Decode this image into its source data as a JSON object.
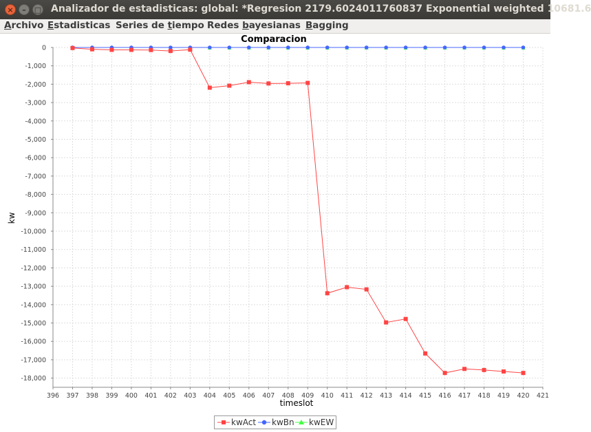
{
  "window": {
    "title": "Analizador de estadisticas: global: *Regresion 2179.6024011760837 Exponential weighted  10681.6",
    "close_glyph": "×",
    "minimize_glyph": "–",
    "maximize_glyph": "□"
  },
  "menu": [
    {
      "label": "Archivo",
      "mnemonic": "A"
    },
    {
      "label": "Estadisticas",
      "mnemonic": "E"
    },
    {
      "label": "Series de tiempo",
      "mnemonic": "t"
    },
    {
      "label": "Redes bayesianas",
      "mnemonic": "b"
    },
    {
      "label": "Bagging",
      "mnemonic": "B"
    }
  ],
  "chart_data": {
    "type": "line",
    "title": "Comparacion",
    "xlabel": "timeslot",
    "ylabel": "kw",
    "xlim": [
      396,
      421
    ],
    "ylim": [
      -18500,
      0
    ],
    "xticks": [
      396,
      397,
      398,
      399,
      400,
      401,
      402,
      403,
      404,
      405,
      406,
      407,
      408,
      409,
      410,
      411,
      412,
      413,
      414,
      415,
      416,
      417,
      418,
      419,
      420,
      421
    ],
    "yticks": [
      0,
      -1000,
      -2000,
      -3000,
      -4000,
      -5000,
      -6000,
      -7000,
      -8000,
      -9000,
      -10000,
      -11000,
      -12000,
      -13000,
      -14000,
      -15000,
      -16000,
      -17000,
      -18000
    ],
    "ytick_labels": [
      "0",
      "-1,000",
      "-2,000",
      "-3,000",
      "-4,000",
      "-5,000",
      "-6,000",
      "-7,000",
      "-8,000",
      "-9,000",
      "-10,000",
      "-11,000",
      "-12,000",
      "-13,000",
      "-14,000",
      "-15,000",
      "-16,000",
      "-17,000",
      "-18,000"
    ],
    "grid": true,
    "legend_position": "bottom-center",
    "x": [
      397,
      398,
      399,
      400,
      401,
      402,
      403,
      404,
      405,
      406,
      407,
      408,
      409,
      410,
      411,
      412,
      413,
      414,
      415,
      416,
      417,
      418,
      419,
      420
    ],
    "series": [
      {
        "name": "kwAct",
        "color": "#ff4444",
        "marker": "square",
        "values": [
          -30,
          -100,
          -130,
          -130,
          -140,
          -190,
          -120,
          -2190,
          -2080,
          -1890,
          -1960,
          -1950,
          -1930,
          -13380,
          -13050,
          -13170,
          -14970,
          -14780,
          -16660,
          -17720,
          -17500,
          -17560,
          -17640,
          -17720
        ]
      },
      {
        "name": "kwBn",
        "color": "#4466ff",
        "marker": "circle",
        "values": [
          0,
          0,
          0,
          0,
          0,
          0,
          0,
          0,
          0,
          0,
          0,
          0,
          0,
          0,
          0,
          0,
          0,
          0,
          0,
          0,
          0,
          0,
          0,
          0
        ]
      },
      {
        "name": "kwEW",
        "color": "#44ff44",
        "marker": "triangle",
        "values": [
          0,
          0,
          0,
          0,
          0,
          0,
          0,
          0,
          0,
          0,
          0,
          0,
          0,
          0,
          0,
          0,
          0,
          0,
          0,
          0,
          0,
          0,
          0,
          0
        ]
      }
    ]
  }
}
